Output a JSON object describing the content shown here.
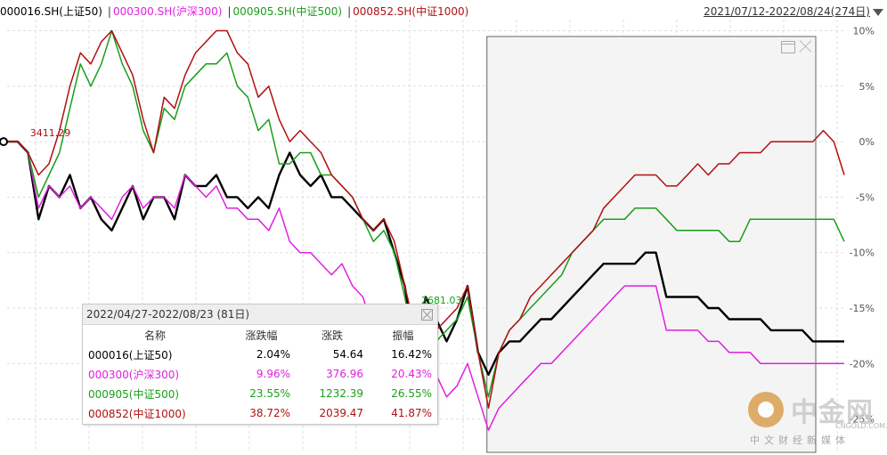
{
  "header": {
    "series_labels": [
      {
        "text": "000016.SH(上证50)",
        "color": "#000000"
      },
      {
        "text": "000300.SH(沪深300)",
        "color": "#e020e0"
      },
      {
        "text": "000905.SH(中证500)",
        "color": "#1a9e1a"
      },
      {
        "text": "000852.SH(中证1000)",
        "color": "#b01010"
      }
    ],
    "separator": "|",
    "date_range": "2021/07/12-2022/08/24(274日)"
  },
  "stats_panel": {
    "title": "2022/04/27-2022/08/23 (81日)",
    "columns": [
      "名称",
      "涨跌幅",
      "涨跌",
      "振幅"
    ],
    "rows": [
      {
        "name": "000016(上证50)",
        "pct": "2.04%",
        "change": "54.64",
        "amplitude": "16.42%",
        "color": "#000000"
      },
      {
        "name": "000300(沪深300)",
        "pct": "9.96%",
        "change": "376.96",
        "amplitude": "20.43%",
        "color": "#e020e0"
      },
      {
        "name": "000905(中证500)",
        "pct": "23.55%",
        "change": "1232.39",
        "amplitude": "26.55%",
        "color": "#1a9e1a"
      },
      {
        "name": "000852(中证1000)",
        "pct": "38.72%",
        "change": "2039.47",
        "amplitude": "41.87%",
        "color": "#b01010"
      }
    ]
  },
  "watermark": {
    "title": "中金网",
    "domain": "CNGOLD.COM.CN",
    "subtitle": "中文财经新媒体"
  },
  "chart_data": {
    "type": "line",
    "x_range": [
      "2021/07/12",
      "2022/08/24"
    ],
    "y_axis": {
      "ticks": [
        "10%",
        "5%",
        "0%",
        "-5%",
        "-10%",
        "-15%",
        "-20%",
        "-25%"
      ],
      "tick_values": [
        10,
        5,
        0,
        -5,
        -10,
        -15,
        -20,
        -25
      ],
      "ylim": [
        -28,
        11
      ]
    },
    "grid": true,
    "selected_range": {
      "start_index": 45,
      "end_index": 80
    },
    "annotations": [
      {
        "text": "3411.29",
        "series": "000016.SH(上证50)",
        "at_index": 1,
        "color": "#b01010"
      },
      {
        "text": "2681.03",
        "series": "000016.SH(上证50)",
        "at_index": 44,
        "color": "#1a9e1a"
      }
    ],
    "series": [
      {
        "name": "000016.SH(上证50)",
        "color": "#000000",
        "values": [
          0,
          0,
          -1,
          -7,
          -4,
          -5,
          -3,
          -6,
          -5,
          -7,
          -8,
          -6,
          -4,
          -7,
          -5,
          -5,
          -7,
          -3,
          -4,
          -4,
          -3,
          -5,
          -5,
          -6,
          -5,
          -6,
          -3,
          -1,
          -3,
          -4,
          -3,
          -5,
          -5,
          -6,
          -7,
          -8,
          -7,
          -10,
          -13,
          -19,
          -14,
          -16,
          -18,
          -16,
          -13,
          -19,
          -21,
          -19,
          -18,
          -18,
          -17,
          -16,
          -16,
          -15,
          -14,
          -13,
          -12,
          -11,
          -11,
          -11,
          -11,
          -10,
          -10,
          -14,
          -14,
          -14,
          -14,
          -15,
          -15,
          -16,
          -16,
          -16,
          -16,
          -17,
          -17,
          -17,
          -17,
          -18,
          -18,
          -18,
          -18
        ]
      },
      {
        "name": "000300.SH(沪深300)",
        "color": "#e020e0",
        "values": [
          0,
          0,
          -1,
          -6,
          -4,
          -5,
          -4,
          -6,
          -5,
          -6,
          -7,
          -5,
          -4,
          -6,
          -5,
          -5,
          -6,
          -3,
          -4,
          -5,
          -4,
          -6,
          -6,
          -7,
          -7,
          -8,
          -6,
          -9,
          -10,
          -10,
          -11,
          -12,
          -11,
          -13,
          -14,
          -17,
          -17,
          -16,
          -19,
          -19,
          -17,
          -21,
          -23,
          -22,
          -20,
          -23,
          -26,
          -24,
          -23,
          -22,
          -21,
          -20,
          -20,
          -19,
          -18,
          -17,
          -16,
          -15,
          -14,
          -13,
          -13,
          -13,
          -13,
          -17,
          -17,
          -17,
          -17,
          -18,
          -18,
          -19,
          -19,
          -19,
          -20,
          -20,
          -20,
          -20,
          -20,
          -20,
          -20,
          -20,
          -20
        ]
      },
      {
        "name": "000905.SH(中证500)",
        "color": "#1a9e1a",
        "values": [
          0,
          0,
          -1,
          -5,
          -3,
          -1,
          3,
          7,
          5,
          7,
          10,
          7,
          5,
          1,
          -1,
          3,
          2,
          5,
          6,
          7,
          7,
          8,
          5,
          4,
          1,
          2,
          -2,
          -2,
          -1,
          -1,
          -3,
          -3,
          -4,
          -5,
          -7,
          -9,
          -8,
          -10,
          -14,
          -19,
          -16,
          -18,
          -17,
          -16,
          -14,
          -19,
          -23,
          -19,
          -17,
          -16,
          -15,
          -14,
          -13,
          -12,
          -10,
          -9,
          -8,
          -7,
          -7,
          -7,
          -6,
          -6,
          -6,
          -7,
          -8,
          -8,
          -8,
          -8,
          -8,
          -9,
          -9,
          -7,
          -7,
          -7,
          -7,
          -7,
          -7,
          -7,
          -7,
          -7,
          -9
        ]
      },
      {
        "name": "000852.SH(中证1000)",
        "color": "#b01010",
        "values": [
          0,
          0,
          -1,
          -3,
          -2,
          1,
          5,
          8,
          7,
          9,
          10,
          8,
          6,
          2,
          -1,
          4,
          3,
          6,
          8,
          9,
          10,
          10,
          8,
          7,
          4,
          5,
          2,
          0,
          1,
          0,
          -1,
          -3,
          -4,
          -5,
          -7,
          -8,
          -7,
          -9,
          -13,
          -17,
          -15,
          -17,
          -16,
          -15,
          -13,
          -19,
          -24,
          -19,
          -17,
          -16,
          -14,
          -13,
          -12,
          -11,
          -10,
          -9,
          -8,
          -6,
          -5,
          -4,
          -3,
          -3,
          -3,
          -4,
          -4,
          -3,
          -2,
          -3,
          -2,
          -2,
          -1,
          -1,
          -1,
          0,
          0,
          0,
          0,
          0,
          1,
          0,
          -3
        ]
      }
    ]
  }
}
